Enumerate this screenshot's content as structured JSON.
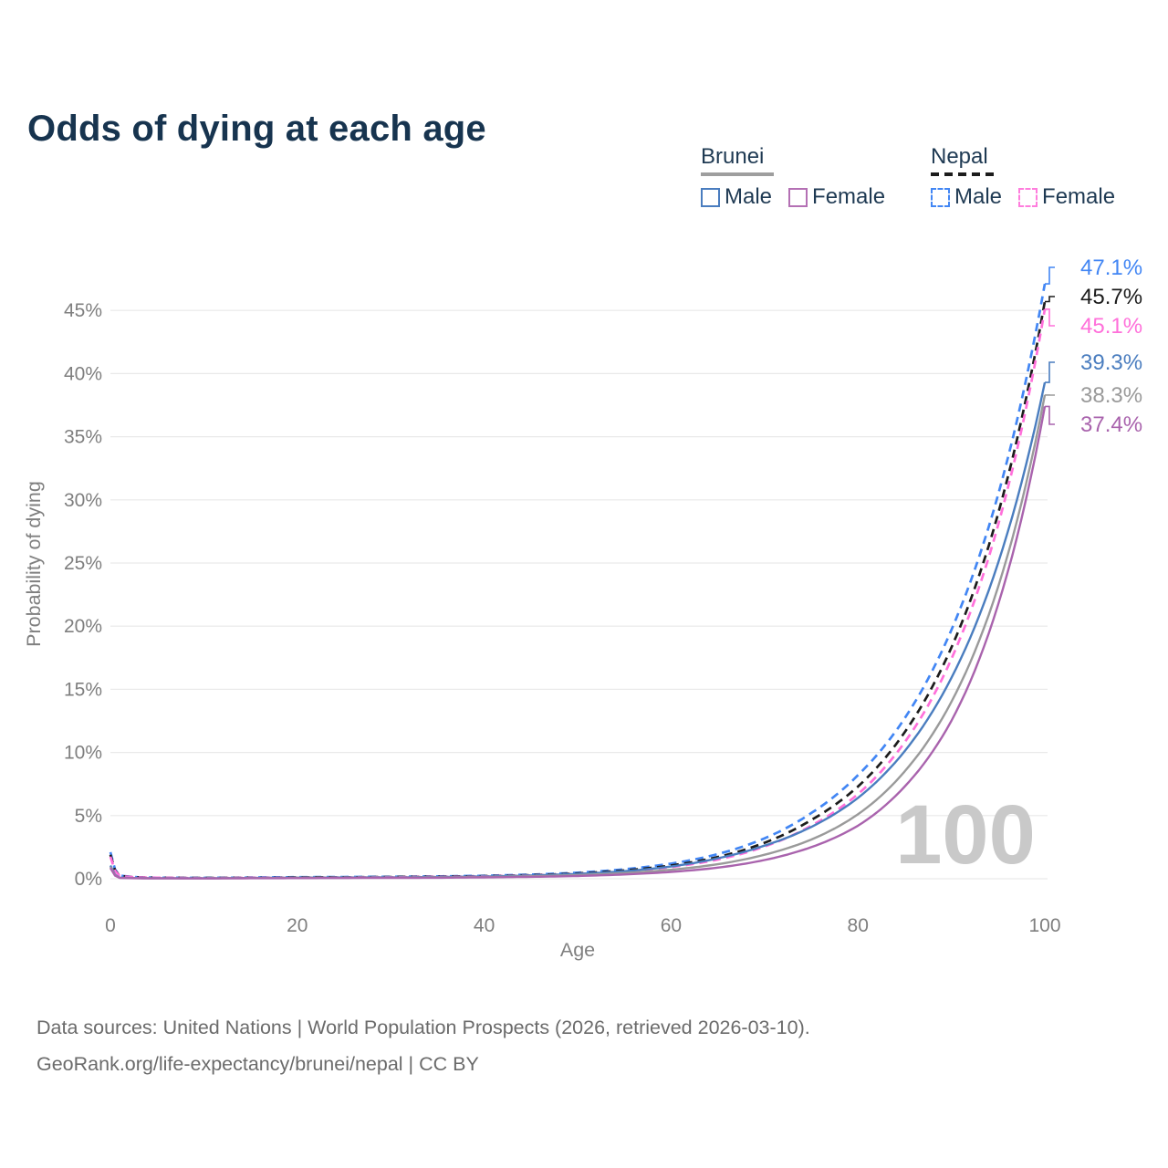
{
  "title": "Odds of dying at each age",
  "legend": {
    "groups": [
      {
        "country": "Brunei",
        "line_style": "solid",
        "line_color": "#9e9e9e",
        "items": [
          {
            "label": "Male",
            "color": "#4a7dbf",
            "dashed": false
          },
          {
            "label": "Female",
            "color": "#b470b4",
            "dashed": false
          }
        ]
      },
      {
        "country": "Nepal",
        "line_style": "dashed",
        "line_color": "#1c1c1c",
        "items": [
          {
            "label": "Male",
            "color": "#4286f4",
            "dashed": true
          },
          {
            "label": "Female",
            "color": "#ff7ddd",
            "dashed": true
          }
        ]
      }
    ]
  },
  "chart_data": {
    "type": "line",
    "title": "Odds of dying at each age",
    "xlabel": "Age",
    "ylabel": "Probability of dying",
    "xlim": [
      0,
      100
    ],
    "ylim": [
      0,
      48.5
    ],
    "grid": true,
    "hover_age": "100",
    "x_ticks": [
      {
        "value": 0,
        "label": "0"
      },
      {
        "value": 20,
        "label": "20"
      },
      {
        "value": 40,
        "label": "40"
      },
      {
        "value": 60,
        "label": "60"
      },
      {
        "value": 80,
        "label": "80"
      },
      {
        "value": 100,
        "label": "100"
      }
    ],
    "y_ticks": [
      {
        "value": 0,
        "label": "0%"
      },
      {
        "value": 5,
        "label": "5%"
      },
      {
        "value": 10,
        "label": "10%"
      },
      {
        "value": 15,
        "label": "15%"
      },
      {
        "value": 20,
        "label": "20%"
      },
      {
        "value": 25,
        "label": "25%"
      },
      {
        "value": 30,
        "label": "30%"
      },
      {
        "value": 35,
        "label": "35%"
      },
      {
        "value": 40,
        "label": "40%"
      },
      {
        "value": 45,
        "label": "45%"
      }
    ],
    "series": [
      {
        "id": "nepal-male",
        "country": "Nepal",
        "sex": "Male",
        "color": "#4286f4",
        "dashed": true,
        "flag": "np",
        "end_label": "47.1%",
        "end_value": 47.1,
        "points": [
          [
            0,
            2.1
          ],
          [
            1,
            0.25
          ],
          [
            3,
            0.12
          ],
          [
            5,
            0.09
          ],
          [
            10,
            0.07
          ],
          [
            15,
            0.1
          ],
          [
            20,
            0.13
          ],
          [
            25,
            0.14
          ],
          [
            30,
            0.16
          ],
          [
            35,
            0.19
          ],
          [
            40,
            0.24
          ],
          [
            45,
            0.33
          ],
          [
            50,
            0.48
          ],
          [
            55,
            0.75
          ],
          [
            60,
            1.2
          ],
          [
            65,
            1.95
          ],
          [
            70,
            3.2
          ],
          [
            75,
            5.2
          ],
          [
            80,
            8.2
          ],
          [
            85,
            12.7
          ],
          [
            90,
            19.7
          ],
          [
            95,
            30.4
          ],
          [
            100,
            47.1
          ]
        ]
      },
      {
        "id": "nepal-both",
        "country": "Nepal",
        "sex": "Both sexes",
        "color": "#1c1c1c",
        "dashed": true,
        "flag": "np",
        "end_label": "45.7%",
        "end_value": 45.7,
        "points": [
          [
            0,
            1.9
          ],
          [
            1,
            0.23
          ],
          [
            3,
            0.11
          ],
          [
            5,
            0.08
          ],
          [
            10,
            0.06
          ],
          [
            15,
            0.08
          ],
          [
            20,
            0.11
          ],
          [
            25,
            0.12
          ],
          [
            30,
            0.14
          ],
          [
            35,
            0.17
          ],
          [
            40,
            0.21
          ],
          [
            45,
            0.29
          ],
          [
            50,
            0.42
          ],
          [
            55,
            0.66
          ],
          [
            60,
            1.05
          ],
          [
            65,
            1.72
          ],
          [
            70,
            2.85
          ],
          [
            75,
            4.65
          ],
          [
            80,
            7.3
          ],
          [
            85,
            11.6
          ],
          [
            90,
            18.3
          ],
          [
            95,
            28.9
          ],
          [
            100,
            45.7
          ]
        ]
      },
      {
        "id": "nepal-female",
        "country": "Nepal",
        "sex": "Female",
        "color": "#ff70da",
        "dashed": true,
        "flag": "np",
        "end_label": "45.1%",
        "end_value": 45.1,
        "points": [
          [
            0,
            1.75
          ],
          [
            1,
            0.21
          ],
          [
            3,
            0.1
          ],
          [
            5,
            0.08
          ],
          [
            10,
            0.05
          ],
          [
            15,
            0.07
          ],
          [
            20,
            0.09
          ],
          [
            25,
            0.1
          ],
          [
            30,
            0.12
          ],
          [
            35,
            0.15
          ],
          [
            40,
            0.19
          ],
          [
            45,
            0.26
          ],
          [
            50,
            0.37
          ],
          [
            55,
            0.58
          ],
          [
            60,
            0.92
          ],
          [
            65,
            1.52
          ],
          [
            70,
            2.55
          ],
          [
            75,
            4.2
          ],
          [
            80,
            6.7
          ],
          [
            85,
            10.8
          ],
          [
            90,
            17.4
          ],
          [
            95,
            28.0
          ],
          [
            100,
            45.1
          ]
        ]
      },
      {
        "id": "brunei-male",
        "country": "Brunei",
        "sex": "Male",
        "color": "#4a7dbf",
        "dashed": false,
        "flag": "bn",
        "end_label": "39.3%",
        "end_value": 39.3,
        "points": [
          [
            0,
            1.05
          ],
          [
            1,
            0.09
          ],
          [
            3,
            0.05
          ],
          [
            5,
            0.04
          ],
          [
            10,
            0.04
          ],
          [
            15,
            0.06
          ],
          [
            20,
            0.09
          ],
          [
            25,
            0.1
          ],
          [
            30,
            0.11
          ],
          [
            35,
            0.14
          ],
          [
            40,
            0.18
          ],
          [
            45,
            0.26
          ],
          [
            50,
            0.38
          ],
          [
            55,
            0.6
          ],
          [
            60,
            0.97
          ],
          [
            65,
            1.62
          ],
          [
            70,
            2.62
          ],
          [
            75,
            4.1
          ],
          [
            80,
            6.4
          ],
          [
            85,
            10.1
          ],
          [
            90,
            15.9
          ],
          [
            95,
            25.0
          ],
          [
            100,
            39.3
          ]
        ]
      },
      {
        "id": "brunei-both",
        "country": "Brunei",
        "sex": "Both sexes",
        "color": "#9a9a9a",
        "dashed": false,
        "flag": "bn",
        "end_label": "38.3%",
        "end_value": 38.3,
        "points": [
          [
            0,
            0.95
          ],
          [
            1,
            0.08
          ],
          [
            3,
            0.04
          ],
          [
            5,
            0.03
          ],
          [
            10,
            0.03
          ],
          [
            15,
            0.05
          ],
          [
            20,
            0.07
          ],
          [
            25,
            0.08
          ],
          [
            30,
            0.09
          ],
          [
            35,
            0.11
          ],
          [
            40,
            0.14
          ],
          [
            45,
            0.2
          ],
          [
            50,
            0.29
          ],
          [
            55,
            0.45
          ],
          [
            60,
            0.71
          ],
          [
            65,
            1.15
          ],
          [
            70,
            1.9
          ],
          [
            75,
            3.1
          ],
          [
            80,
            5.1
          ],
          [
            85,
            8.5
          ],
          [
            90,
            14.0
          ],
          [
            95,
            23.1
          ],
          [
            100,
            38.3
          ]
        ]
      },
      {
        "id": "brunei-female",
        "country": "Brunei",
        "sex": "Female",
        "color": "#a963ad",
        "dashed": false,
        "flag": "bn",
        "end_label": "37.4%",
        "end_value": 37.4,
        "points": [
          [
            0,
            0.85
          ],
          [
            1,
            0.07
          ],
          [
            3,
            0.04
          ],
          [
            5,
            0.03
          ],
          [
            10,
            0.02
          ],
          [
            15,
            0.04
          ],
          [
            20,
            0.05
          ],
          [
            25,
            0.06
          ],
          [
            30,
            0.07
          ],
          [
            35,
            0.08
          ],
          [
            40,
            0.11
          ],
          [
            45,
            0.15
          ],
          [
            50,
            0.22
          ],
          [
            55,
            0.34
          ],
          [
            60,
            0.54
          ],
          [
            65,
            0.88
          ],
          [
            70,
            1.48
          ],
          [
            75,
            2.5
          ],
          [
            80,
            4.2
          ],
          [
            85,
            7.3
          ],
          [
            90,
            12.5
          ],
          [
            95,
            21.7
          ],
          [
            100,
            37.4
          ]
        ]
      }
    ]
  },
  "footer": {
    "line1": "Data sources: United Nations | World Population Prospects (2026, retrieved 2026-03-10).",
    "line2": "GeoRank.org/life-expectancy/brunei/nepal | CC BY"
  }
}
